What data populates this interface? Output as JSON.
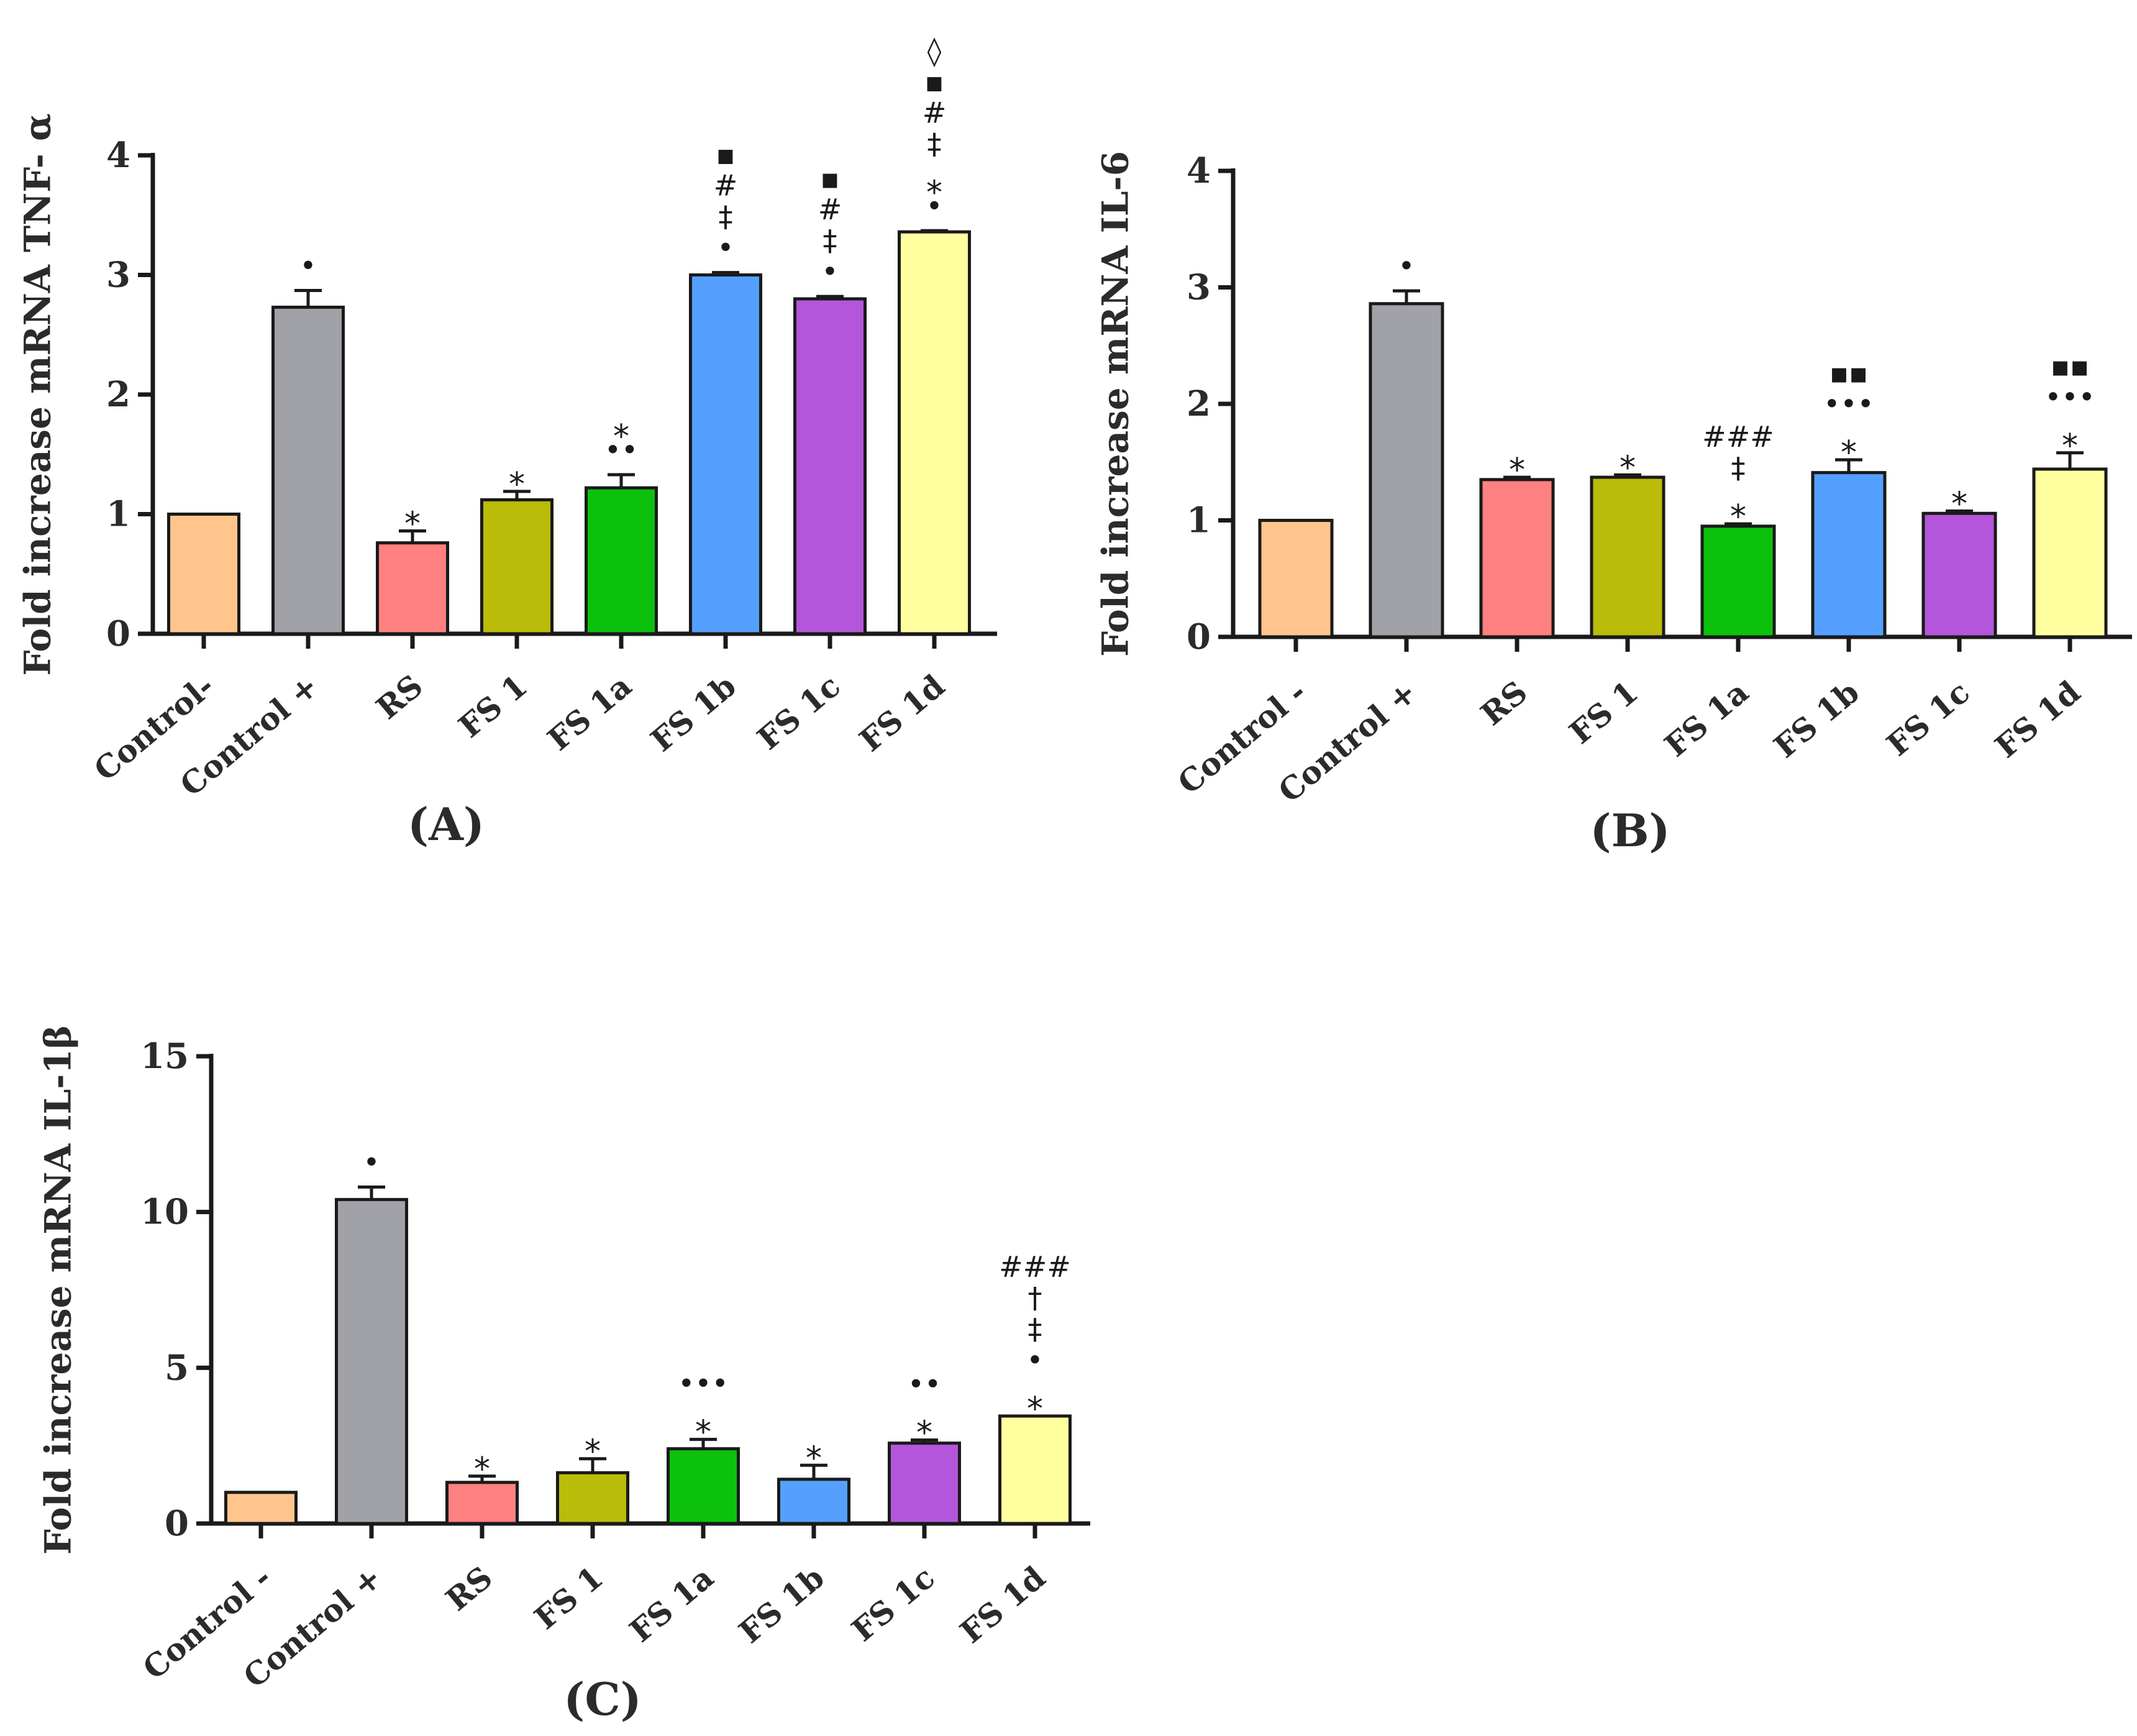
{
  "colors": {
    "Control-": "#FFC58C",
    "Control +": "#A1A1A8",
    "RS": "#FF8080",
    "FS 1": "#BBBB0A",
    "FS 1a": "#0CC10C",
    "FS 1b": "#55A0FF",
    "FS 1c": "#B456DB",
    "FS 1d": "#FFFFA0"
  },
  "chart_data": [
    {
      "id": "A",
      "type": "bar",
      "panel_label": "(A)",
      "ylabel": "Fold increase mRNA TNF- α",
      "ylim": [
        0,
        4
      ],
      "yticks": [
        "0",
        "1",
        "2",
        "3",
        "4"
      ],
      "categories": [
        "Control-",
        "Control +",
        "RS",
        "FS 1",
        "FS 1a",
        "FS 1b",
        "FS 1c",
        "FS 1d"
      ],
      "values": [
        1.0,
        2.73,
        0.76,
        1.12,
        1.22,
        3.0,
        2.8,
        3.36
      ],
      "errors": [
        0,
        0.14,
        0.1,
        0.07,
        0.11,
        0.02,
        0.02,
        0.01
      ],
      "significance": [
        [],
        [
          "•"
        ],
        [
          "*"
        ],
        [
          "*"
        ],
        [
          "••",
          "*"
        ],
        [
          "•",
          "‡",
          "#",
          "▪"
        ],
        [
          "•",
          "‡",
          "#",
          "▪"
        ],
        [
          "•",
          "*",
          "‡",
          "#",
          "▪",
          "◊"
        ]
      ]
    },
    {
      "id": "B",
      "type": "bar",
      "panel_label": "(B)",
      "ylabel": "Fold increase mRNA IL-6",
      "ylim": [
        0,
        4
      ],
      "yticks": [
        "0",
        "1",
        "2",
        "3",
        "4"
      ],
      "categories": [
        "Control -",
        "Control +",
        "RS",
        "FS 1",
        "FS 1a",
        "FS 1b",
        "FS 1c",
        "FS 1d"
      ],
      "values": [
        1.0,
        2.86,
        1.35,
        1.37,
        0.95,
        1.41,
        1.06,
        1.44
      ],
      "errors": [
        0,
        0.11,
        0.02,
        0.02,
        0.02,
        0.11,
        0.02,
        0.14
      ],
      "significance": [
        [],
        [
          "•"
        ],
        [
          "*"
        ],
        [
          "*"
        ],
        [
          "*",
          "‡",
          "###"
        ],
        [
          "*",
          "•••",
          "▪▪"
        ],
        [
          "*"
        ],
        [
          "*",
          "•••",
          "▪▪"
        ]
      ]
    },
    {
      "id": "C",
      "type": "bar",
      "panel_label": "(C)",
      "ylabel": "Fold increase mRNA IL-1β",
      "ylim": [
        0,
        15
      ],
      "yticks": [
        "0",
        "5",
        "10",
        "15"
      ],
      "categories": [
        "Control -",
        "Control +",
        "RS",
        "FS 1",
        "FS 1a",
        "FS 1b",
        "FS 1c",
        "FS 1d"
      ],
      "values": [
        1.0,
        10.4,
        1.32,
        1.63,
        2.4,
        1.42,
        2.58,
        3.45
      ],
      "errors": [
        0,
        0.4,
        0.2,
        0.45,
        0.3,
        0.45,
        0.1,
        0
      ],
      "significance": [
        [],
        [
          "•"
        ],
        [
          "*"
        ],
        [
          "*"
        ],
        [
          "*",
          "•••"
        ],
        [
          "*"
        ],
        [
          "*",
          "••"
        ],
        [
          "*",
          "•",
          "‡",
          "†",
          "###"
        ]
      ]
    }
  ]
}
